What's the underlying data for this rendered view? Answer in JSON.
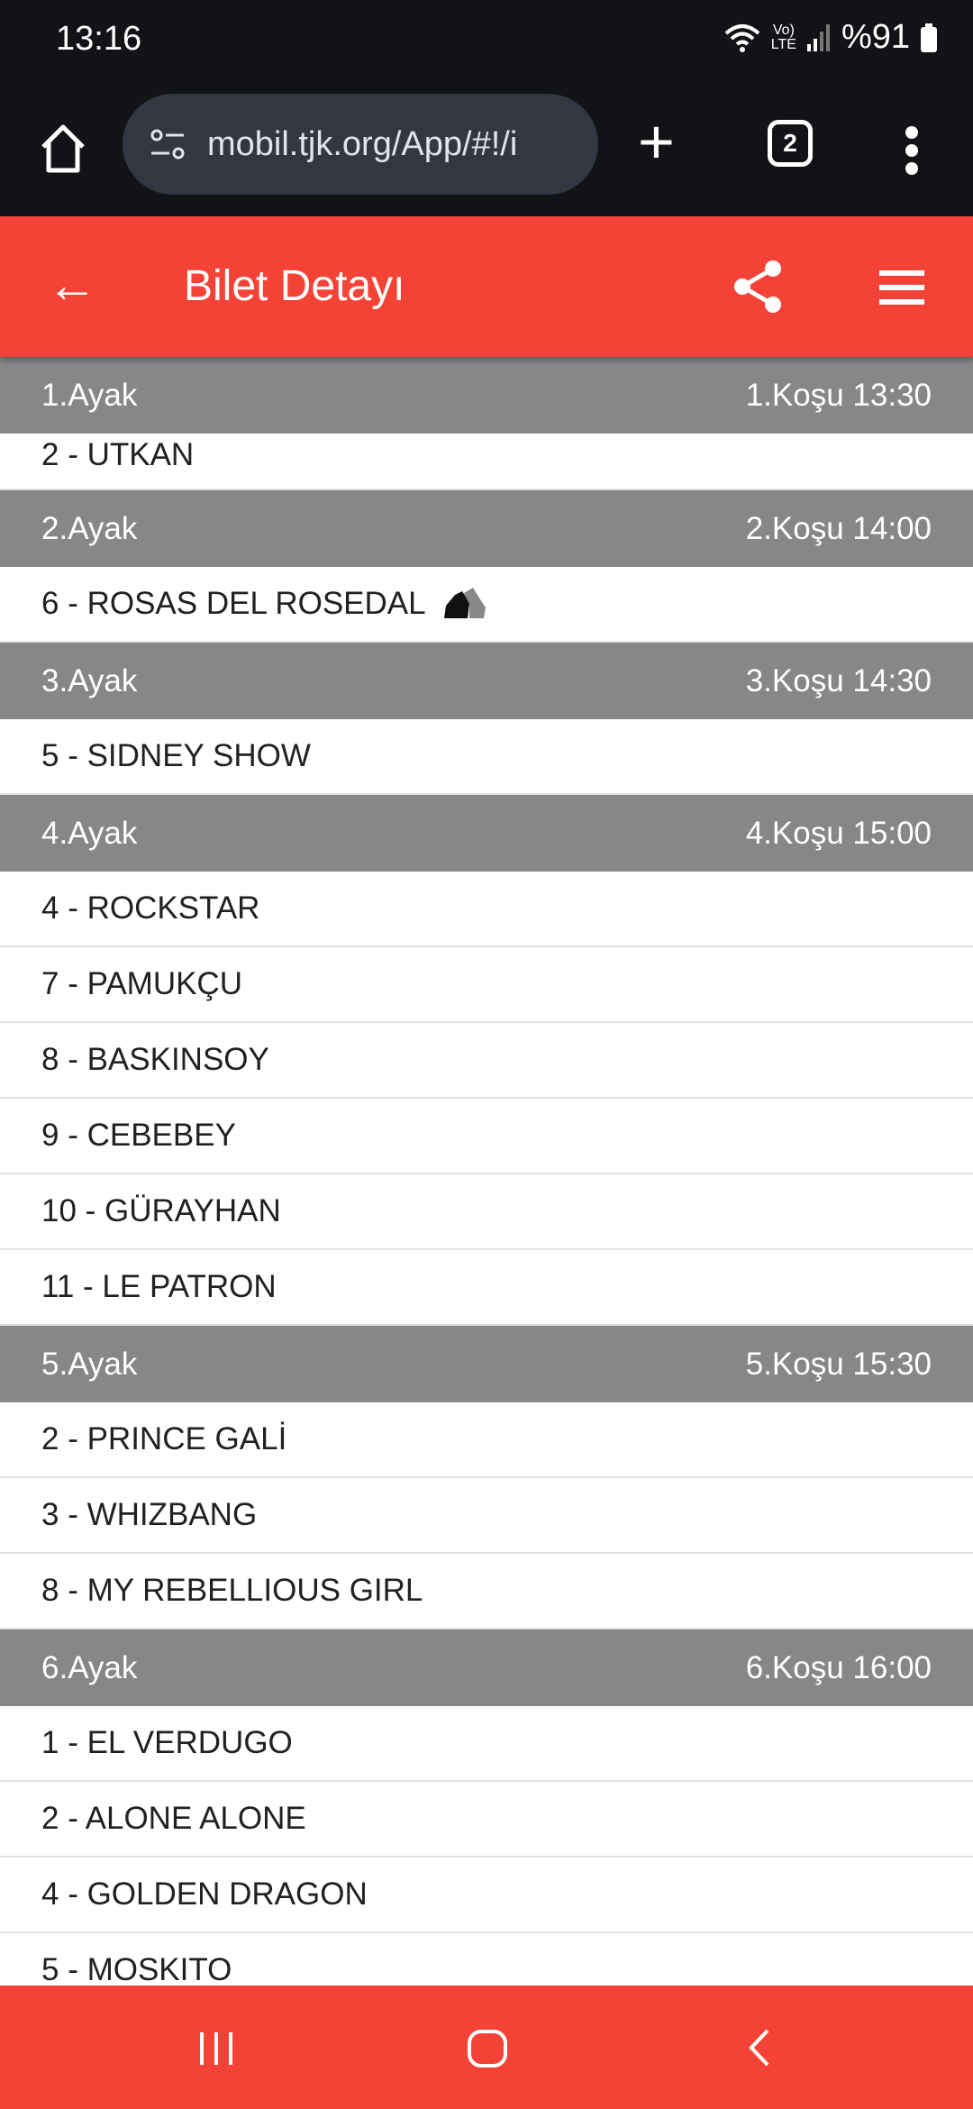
{
  "status_bar": {
    "time": "13:16",
    "network": "VoLTE",
    "battery": "%91"
  },
  "browser": {
    "url": "mobil.tjk.org/App/#!/i",
    "tab_count": "2"
  },
  "app_bar": {
    "title": "Bilet Detayı"
  },
  "legs": [
    {
      "leg": "1.Ayak",
      "race": "1.Koşu 13:30",
      "horses": [
        "2 - UTKAN"
      ]
    },
    {
      "leg": "2.Ayak",
      "race": "2.Koşu 14:00",
      "horses": [
        "6 - ROSAS DEL ROSEDAL"
      ]
    },
    {
      "leg": "3.Ayak",
      "race": "3.Koşu 14:30",
      "horses": [
        "5 - SIDNEY SHOW"
      ]
    },
    {
      "leg": "4.Ayak",
      "race": "4.Koşu 15:00",
      "horses": [
        "4 - ROCKSTAR",
        "7 - PAMUKÇU",
        "8 - BASKINSOY",
        "9 - CEBEBEY",
        "10 - GÜRAYHAN",
        "11 - LE PATRON"
      ]
    },
    {
      "leg": "5.Ayak",
      "race": "5.Koşu 15:30",
      "horses": [
        "2 - PRINCE GALİ",
        "3 - WHIZBANG",
        "8 - MY REBELLIOUS GIRL"
      ]
    },
    {
      "leg": "6.Ayak",
      "race": "6.Koşu 16:00",
      "horses": [
        "1 - EL VERDUGO",
        "2 - ALONE ALONE",
        "4 - GOLDEN DRAGON",
        "5 - MOSKITO"
      ]
    }
  ],
  "colors": {
    "accent": "#f44336",
    "leg_header": "#888689",
    "browser_bg": "#121317"
  }
}
